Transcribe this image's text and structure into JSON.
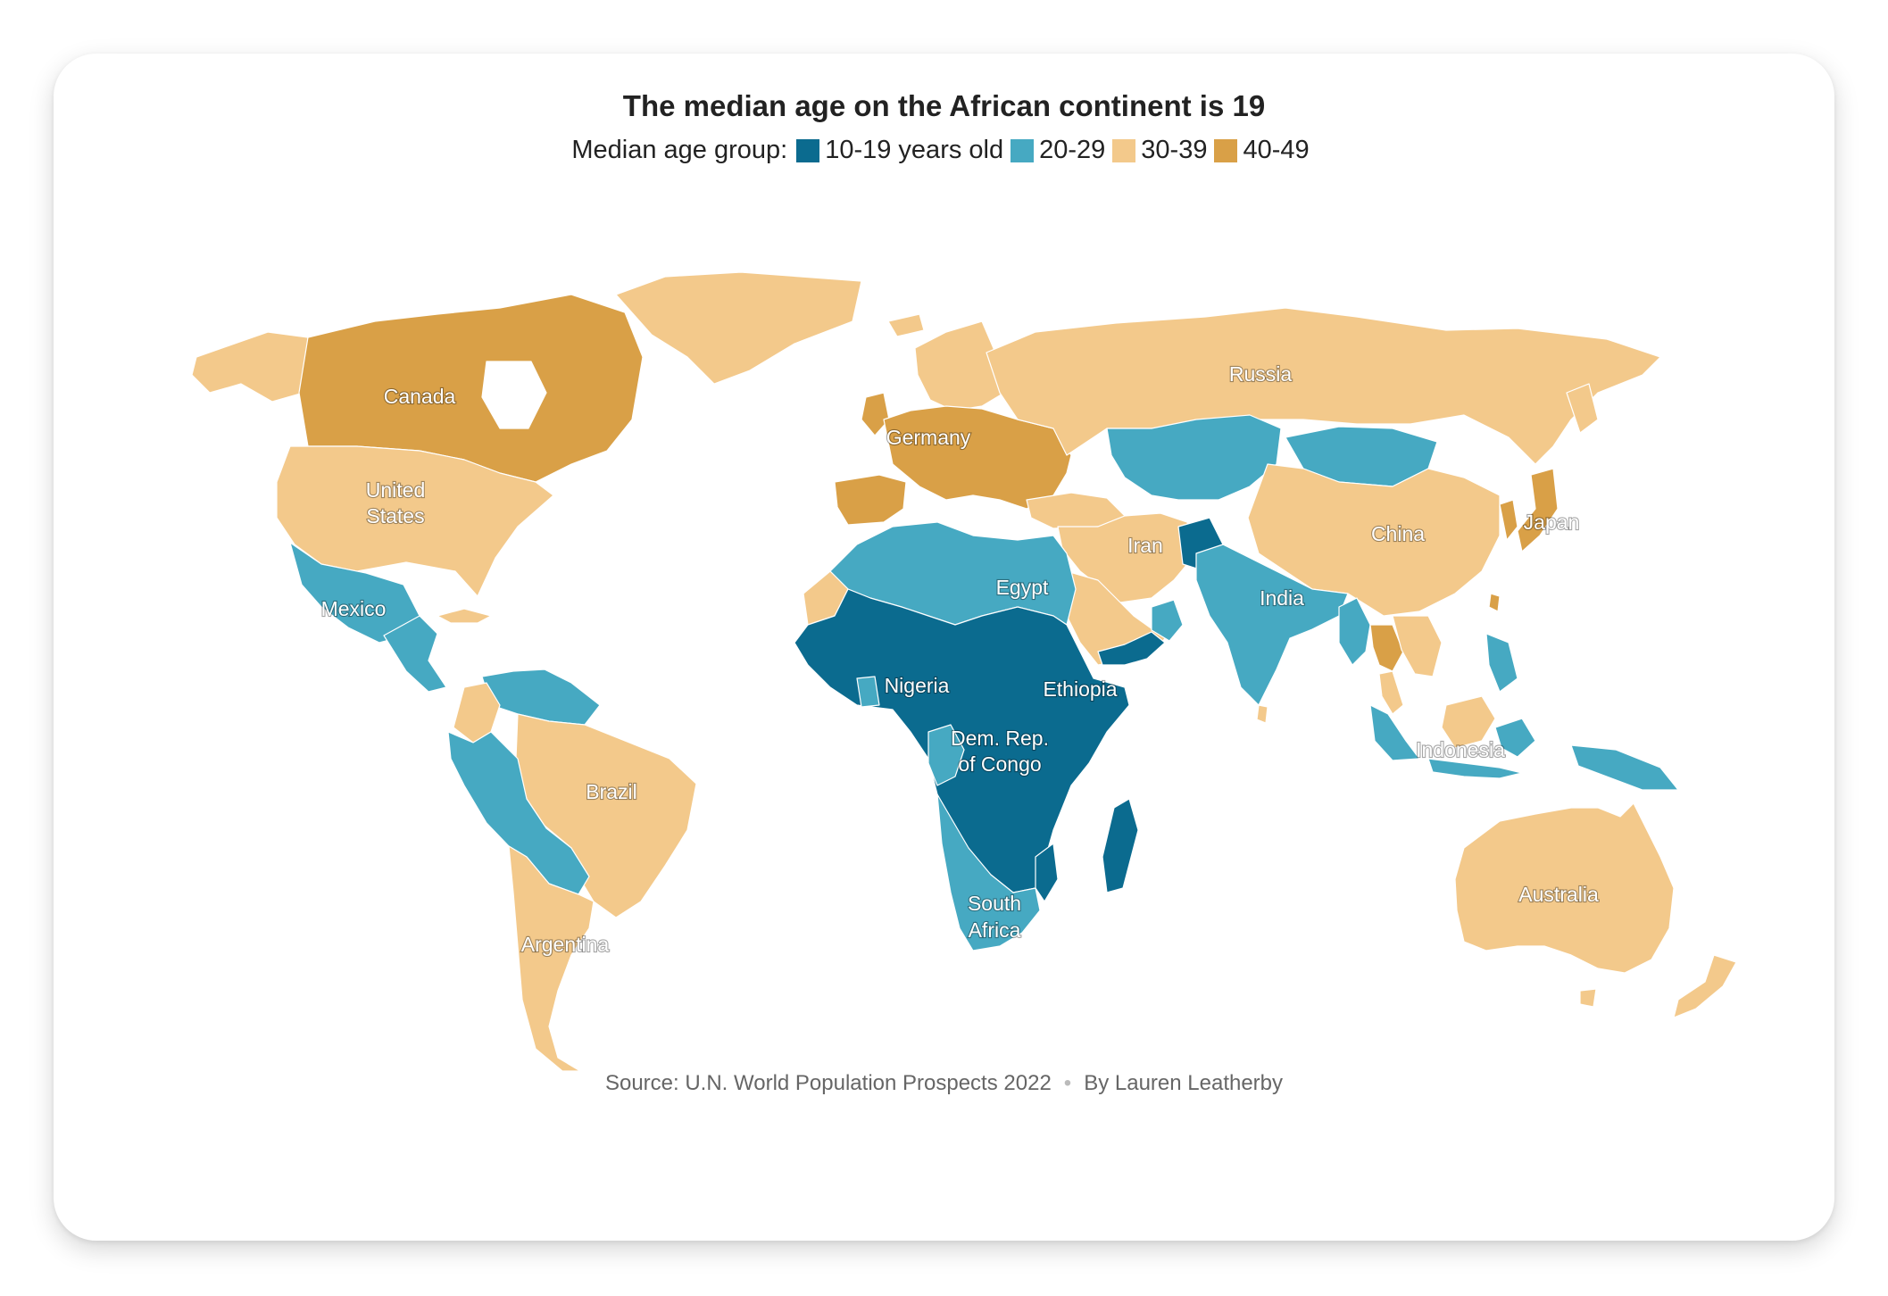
{
  "title": "The median age on the African continent is 19",
  "legend": {
    "label": "Median age group:",
    "items": [
      {
        "label": "10-19 years old",
        "color": "#0b6b8f"
      },
      {
        "label": "20-29",
        "color": "#46a9c2"
      },
      {
        "label": "30-39",
        "color": "#f3c98b"
      },
      {
        "label": "40-49",
        "color": "#d9a047"
      }
    ]
  },
  "labels": {
    "canada": "Canada",
    "us1": "United",
    "us2": "States",
    "mexico": "Mexico",
    "brazil": "Brazil",
    "argentina": "Argentina",
    "germany": "Germany",
    "russia": "Russia",
    "iran": "Iran",
    "china": "China",
    "japan": "Japan",
    "egypt": "Egypt",
    "india": "India",
    "nigeria": "Nigeria",
    "ethiopia": "Ethiopia",
    "drc1": "Dem. Rep.",
    "drc2": "of Congo",
    "indonesia": "Indonesia",
    "sa1": "South",
    "sa2": "Africa",
    "australia": "Australia"
  },
  "footer": {
    "source": "Source: U.N. World Population Prospects 2022",
    "separator": "•",
    "byline": "By Lauren Leatherby"
  }
}
